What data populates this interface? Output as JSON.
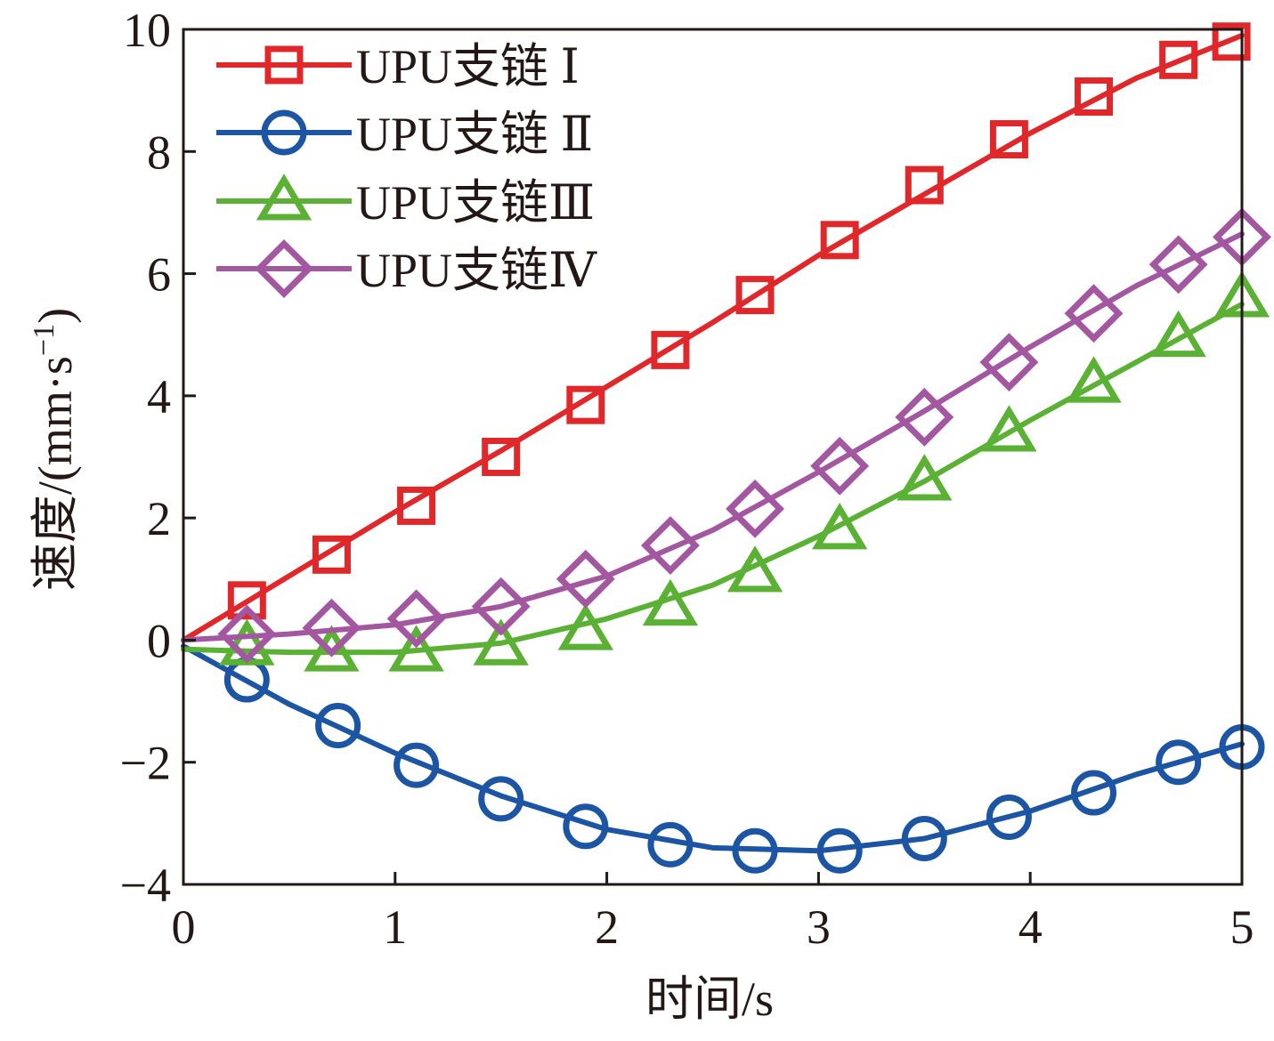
{
  "chart_data": {
    "type": "line",
    "title": "",
    "xlabel": "时间/s",
    "ylabel_main": "速度/(mm·s",
    "ylabel_sup": "−1",
    "ylabel_close": ")",
    "xlim": [
      0,
      5
    ],
    "ylim": [
      -4,
      10
    ],
    "xticks": [
      0,
      1,
      2,
      3,
      4,
      5
    ],
    "yticks": [
      -4,
      -2,
      0,
      2,
      4,
      6,
      8,
      10
    ],
    "xtick_labels": [
      "0",
      "1",
      "2",
      "3",
      "4",
      "5"
    ],
    "ytick_labels": [
      "−4",
      "−2",
      "0",
      "2",
      "4",
      "6",
      "8",
      "10"
    ],
    "grid": false,
    "legend_position": "top-left",
    "series": [
      {
        "name": "UPU支链 Ⅰ",
        "color": "#e0272a",
        "marker": "square",
        "line_x": [
          0,
          0.5,
          1,
          1.5,
          2,
          2.5,
          3,
          3.5,
          4,
          4.5,
          5
        ],
        "line_y": [
          0,
          1.05,
          2.1,
          3.1,
          4.15,
          5.2,
          6.3,
          7.3,
          8.3,
          9.2,
          9.9
        ],
        "marker_x": [
          0.3,
          0.7,
          1.1,
          1.5,
          1.9,
          2.3,
          2.7,
          3.1,
          3.5,
          3.9,
          4.3,
          4.7,
          4.95
        ],
        "marker_y": [
          0.65,
          1.4,
          2.2,
          3.0,
          3.85,
          4.75,
          5.65,
          6.55,
          7.45,
          8.2,
          8.9,
          9.5,
          9.8
        ]
      },
      {
        "name": "UPU支链 Ⅱ",
        "color": "#1b55a3",
        "marker": "circle",
        "line_x": [
          0,
          0.5,
          1,
          1.5,
          2,
          2.5,
          3,
          3.5,
          4,
          4.5,
          5
        ],
        "line_y": [
          -0.1,
          -1.05,
          -1.85,
          -2.55,
          -3.1,
          -3.4,
          -3.45,
          -3.25,
          -2.8,
          -2.2,
          -1.7
        ],
        "marker_x": [
          0.3,
          0.73,
          1.1,
          1.5,
          1.9,
          2.3,
          2.7,
          3.1,
          3.5,
          3.9,
          4.3,
          4.7,
          5.0
        ],
        "marker_y": [
          -0.65,
          -1.4,
          -2.05,
          -2.6,
          -3.05,
          -3.35,
          -3.45,
          -3.45,
          -3.25,
          -2.9,
          -2.5,
          -2.0,
          -1.75
        ]
      },
      {
        "name": "UPU支链Ⅲ",
        "color": "#5bb133",
        "marker": "triangle",
        "line_x": [
          0,
          0.5,
          1,
          1.5,
          2,
          2.5,
          3,
          3.5,
          4,
          4.5,
          5
        ],
        "line_y": [
          -0.15,
          -0.2,
          -0.2,
          -0.05,
          0.35,
          0.9,
          1.7,
          2.6,
          3.6,
          4.55,
          5.5
        ],
        "marker_x": [
          0.3,
          0.7,
          1.1,
          1.5,
          1.9,
          2.3,
          2.7,
          3.1,
          3.5,
          3.9,
          4.3,
          4.7,
          5.0
        ],
        "marker_y": [
          -0.1,
          -0.2,
          -0.2,
          -0.1,
          0.15,
          0.55,
          1.1,
          1.8,
          2.6,
          3.4,
          4.2,
          4.95,
          5.6
        ]
      },
      {
        "name": "UPU支链Ⅳ",
        "color": "#a357a0",
        "marker": "diamond",
        "line_x": [
          0,
          0.5,
          1,
          1.5,
          2,
          2.5,
          3,
          3.5,
          4,
          4.5,
          5
        ],
        "line_y": [
          0,
          0.1,
          0.25,
          0.55,
          1.05,
          1.8,
          2.75,
          3.75,
          4.8,
          5.8,
          6.65
        ],
        "marker_x": [
          0.3,
          0.7,
          1.1,
          1.5,
          1.9,
          2.3,
          2.7,
          3.1,
          3.5,
          3.9,
          4.3,
          4.7,
          5.0
        ],
        "marker_y": [
          0.1,
          0.2,
          0.35,
          0.55,
          1.0,
          1.55,
          2.15,
          2.85,
          3.65,
          4.55,
          5.35,
          6.15,
          6.6
        ]
      }
    ]
  }
}
